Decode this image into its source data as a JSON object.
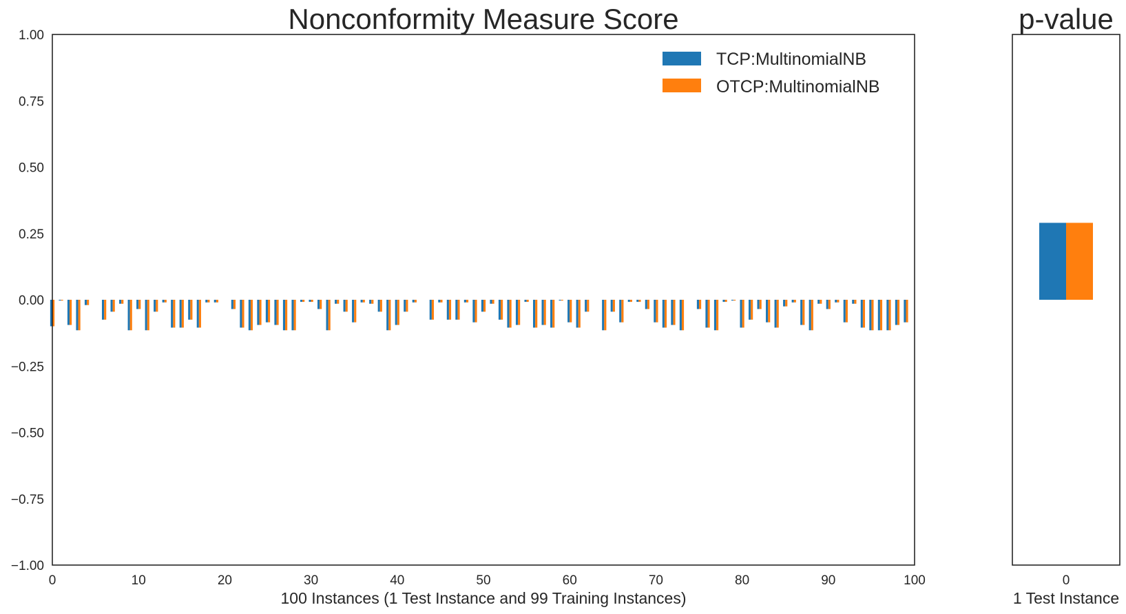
{
  "chart_data": [
    {
      "type": "bar",
      "title": "Nonconformity Measure Score",
      "xlabel": "100 Instances (1 Test Instance and 99 Training Instances)",
      "ylabel": "",
      "xlim": [
        0,
        100
      ],
      "ylim": [
        -1.0,
        1.0
      ],
      "x_ticks": [
        "0",
        "10",
        "20",
        "30",
        "40",
        "50",
        "60",
        "70",
        "80",
        "90",
        "100"
      ],
      "y_ticks": [
        "1.00",
        "0.75",
        "0.50",
        "0.25",
        "0.00",
        "−0.25",
        "−0.50",
        "−0.75",
        "−1.00"
      ],
      "grid": false,
      "legend_position": "top-right",
      "x": [
        0,
        1,
        2,
        3,
        4,
        5,
        6,
        7,
        8,
        9,
        10,
        11,
        12,
        13,
        14,
        15,
        16,
        17,
        18,
        19,
        20,
        21,
        22,
        23,
        24,
        25,
        26,
        27,
        28,
        29,
        30,
        31,
        32,
        33,
        34,
        35,
        36,
        37,
        38,
        39,
        40,
        41,
        42,
        43,
        44,
        45,
        46,
        47,
        48,
        49,
        50,
        51,
        52,
        53,
        54,
        55,
        56,
        57,
        58,
        59,
        60,
        61,
        62,
        63,
        64,
        65,
        66,
        67,
        68,
        69,
        70,
        71,
        72,
        73,
        74,
        75,
        76,
        77,
        78,
        79,
        80,
        81,
        82,
        83,
        84,
        85,
        86,
        87,
        88,
        89,
        90,
        91,
        92,
        93,
        94,
        95,
        96,
        97,
        98,
        99
      ],
      "series": [
        {
          "name": "TCP:MultinomialNB",
          "color": "#1f77b4",
          "values": [
            -0.1,
            -0.003,
            -0.095,
            -0.115,
            -0.02,
            0,
            -0.075,
            -0.045,
            -0.015,
            -0.115,
            -0.035,
            -0.115,
            -0.045,
            -0.01,
            -0.105,
            -0.105,
            -0.075,
            -0.105,
            -0.01,
            -0.01,
            0,
            -0.035,
            -0.105,
            -0.115,
            -0.095,
            -0.085,
            -0.095,
            -0.115,
            -0.115,
            -0.008,
            -0.008,
            -0.035,
            -0.115,
            -0.015,
            -0.045,
            -0.085,
            -0.01,
            -0.015,
            -0.045,
            -0.115,
            -0.095,
            -0.045,
            -0.01,
            0,
            -0.075,
            -0.01,
            -0.075,
            -0.075,
            -0.01,
            -0.085,
            -0.045,
            -0.015,
            -0.075,
            -0.105,
            -0.095,
            -0.008,
            -0.105,
            -0.095,
            -0.105,
            -0.003,
            -0.085,
            -0.105,
            -0.045,
            0,
            -0.115,
            -0.045,
            -0.085,
            -0.008,
            -0.008,
            -0.035,
            -0.085,
            -0.105,
            -0.095,
            -0.115,
            0,
            -0.035,
            -0.105,
            -0.115,
            -0.008,
            -0.003,
            -0.105,
            -0.075,
            -0.035,
            -0.085,
            -0.105,
            -0.025,
            -0.01,
            -0.095,
            -0.115,
            -0.015,
            -0.035,
            -0.01,
            -0.085,
            -0.015,
            -0.105,
            -0.115,
            -0.115,
            -0.115,
            -0.095,
            -0.085
          ]
        },
        {
          "name": "OTCP:MultinomialNB",
          "color": "#ff7f0e",
          "values": [
            -0.1,
            -0.003,
            -0.095,
            -0.115,
            -0.02,
            0,
            -0.075,
            -0.045,
            -0.015,
            -0.115,
            -0.035,
            -0.115,
            -0.045,
            -0.01,
            -0.105,
            -0.105,
            -0.075,
            -0.105,
            -0.01,
            -0.01,
            0,
            -0.035,
            -0.105,
            -0.115,
            -0.095,
            -0.085,
            -0.095,
            -0.115,
            -0.115,
            -0.008,
            -0.008,
            -0.035,
            -0.115,
            -0.015,
            -0.045,
            -0.085,
            -0.01,
            -0.015,
            -0.045,
            -0.115,
            -0.095,
            -0.045,
            -0.01,
            0,
            -0.075,
            -0.01,
            -0.075,
            -0.075,
            -0.01,
            -0.085,
            -0.045,
            -0.015,
            -0.075,
            -0.105,
            -0.095,
            -0.008,
            -0.105,
            -0.095,
            -0.105,
            -0.003,
            -0.085,
            -0.105,
            -0.045,
            0,
            -0.115,
            -0.045,
            -0.085,
            -0.008,
            -0.008,
            -0.035,
            -0.085,
            -0.105,
            -0.095,
            -0.115,
            0,
            -0.035,
            -0.105,
            -0.115,
            -0.008,
            -0.003,
            -0.105,
            -0.075,
            -0.035,
            -0.085,
            -0.105,
            -0.025,
            -0.01,
            -0.095,
            -0.115,
            -0.015,
            -0.035,
            -0.01,
            -0.085,
            -0.015,
            -0.105,
            -0.115,
            -0.115,
            -0.115,
            -0.095,
            -0.085
          ]
        }
      ]
    },
    {
      "type": "bar",
      "title": "p-value",
      "xlabel": "1 Test Instance",
      "categories": [
        "0"
      ],
      "ylim": [
        -1.0,
        1.0
      ],
      "grid": false,
      "series": [
        {
          "name": "TCP:MultinomialNB",
          "color": "#1f77b4",
          "values": [
            0.29
          ]
        },
        {
          "name": "OTCP:MultinomialNB",
          "color": "#ff7f0e",
          "values": [
            0.29
          ]
        }
      ]
    }
  ]
}
